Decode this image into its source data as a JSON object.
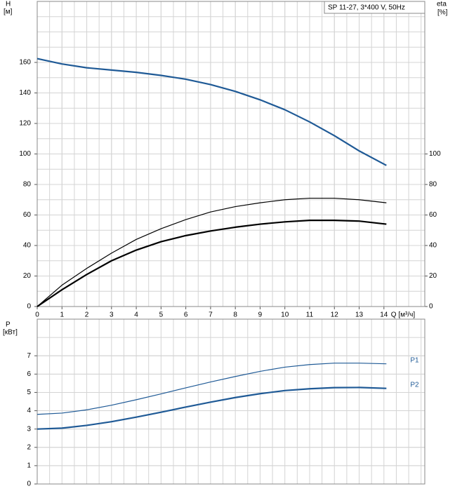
{
  "chart_data": [
    {
      "type": "line",
      "title": "SP 11-27, 3*400 V, 50Hz",
      "y_label": "H",
      "y_unit": "[м]",
      "y2_label": "eta",
      "y2_unit": "[%]",
      "x_label": "Q [м³/ч]",
      "x": [
        0,
        1,
        2,
        3,
        4,
        5,
        6,
        7,
        8,
        9,
        10,
        11,
        12,
        13,
        14.1
      ],
      "xlim": [
        0,
        15.65
      ],
      "xticks": [
        0,
        1,
        2,
        3,
        4,
        5,
        6,
        7,
        8,
        9,
        10,
        11,
        12,
        13,
        14
      ],
      "ylim": [
        0,
        200
      ],
      "yticks": [
        0,
        20,
        40,
        60,
        80,
        100,
        120,
        140,
        160
      ],
      "y2lim": [
        0,
        200
      ],
      "y2ticks": [
        0,
        20,
        40,
        60,
        80,
        100
      ],
      "grid": true,
      "series": [
        {
          "color": "#1f5a96",
          "values": [
            162.5,
            159,
            156.5,
            155,
            153.5,
            151.5,
            149,
            145.5,
            141,
            135.5,
            129,
            121,
            112,
            102,
            92.5
          ]
        },
        {
          "color": "#000000",
          "axis": "y2",
          "values": [
            0,
            14,
            25,
            35,
            44,
            51,
            57,
            62,
            65.5,
            68,
            70,
            71,
            71,
            70,
            68
          ]
        },
        {
          "color": "#000000",
          "axis": "y2",
          "values": [
            0,
            11,
            21,
            30,
            37,
            42.5,
            46.5,
            49.5,
            52,
            54,
            55.5,
            56.5,
            56.5,
            56,
            54
          ]
        }
      ]
    },
    {
      "type": "line",
      "y_label": "P",
      "y_unit": "[кВт]",
      "x": [
        0,
        1,
        2,
        3,
        4,
        5,
        6,
        7,
        8,
        9,
        10,
        11,
        12,
        13,
        14.1
      ],
      "xlim": [
        0,
        15.65
      ],
      "ylim": [
        0,
        9
      ],
      "yticks": [
        0,
        1,
        2,
        3,
        4,
        5,
        6,
        7
      ],
      "grid": true,
      "series": [
        {
          "name": "P1",
          "color": "#1f5a96",
          "values": [
            3.8,
            3.87,
            4.05,
            4.3,
            4.6,
            4.92,
            5.25,
            5.57,
            5.87,
            6.15,
            6.38,
            6.52,
            6.6,
            6.6,
            6.56
          ]
        },
        {
          "name": "P2",
          "color": "#1f5a96",
          "values": [
            3.0,
            3.05,
            3.2,
            3.4,
            3.65,
            3.92,
            4.2,
            4.47,
            4.72,
            4.93,
            5.1,
            5.2,
            5.26,
            5.27,
            5.22
          ]
        }
      ]
    }
  ]
}
